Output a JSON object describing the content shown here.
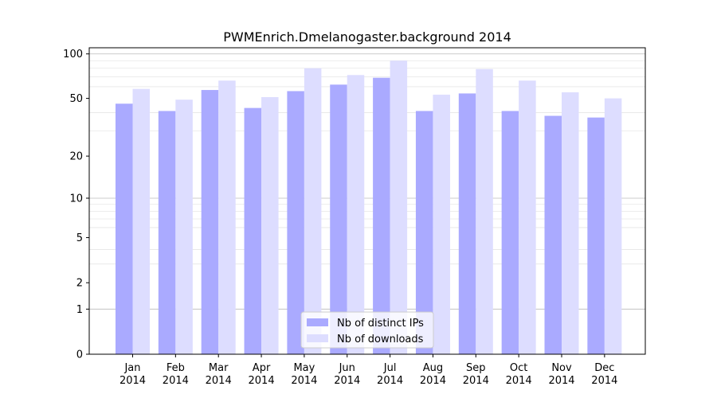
{
  "chart_data": {
    "type": "bar",
    "title": "PWMEnrich.Dmelanogaster.background 2014",
    "xlabel": "",
    "ylabel": "",
    "y_scale": "log(1+y)",
    "ylim": [
      0,
      110
    ],
    "y_ticks": [
      0,
      1,
      2,
      5,
      10,
      20,
      50,
      100
    ],
    "categories": [
      "Jan\n2014",
      "Feb\n2014",
      "Mar\n2014",
      "Apr\n2014",
      "May\n2014",
      "Jun\n2014",
      "Jul\n2014",
      "Aug\n2014",
      "Sep\n2014",
      "Oct\n2014",
      "Nov\n2014",
      "Dec\n2014"
    ],
    "series": [
      {
        "name": "Nb of distinct IPs",
        "color": "#aaaaff",
        "values": [
          46,
          41,
          57,
          43,
          56,
          62,
          69,
          41,
          54,
          41,
          38,
          37
        ]
      },
      {
        "name": "Nb of downloads",
        "color": "#ddddff",
        "values": [
          58,
          49,
          66,
          51,
          80,
          72,
          90,
          53,
          79,
          66,
          55,
          50
        ]
      }
    ],
    "legend_position": "bottom-center",
    "grid": true
  }
}
